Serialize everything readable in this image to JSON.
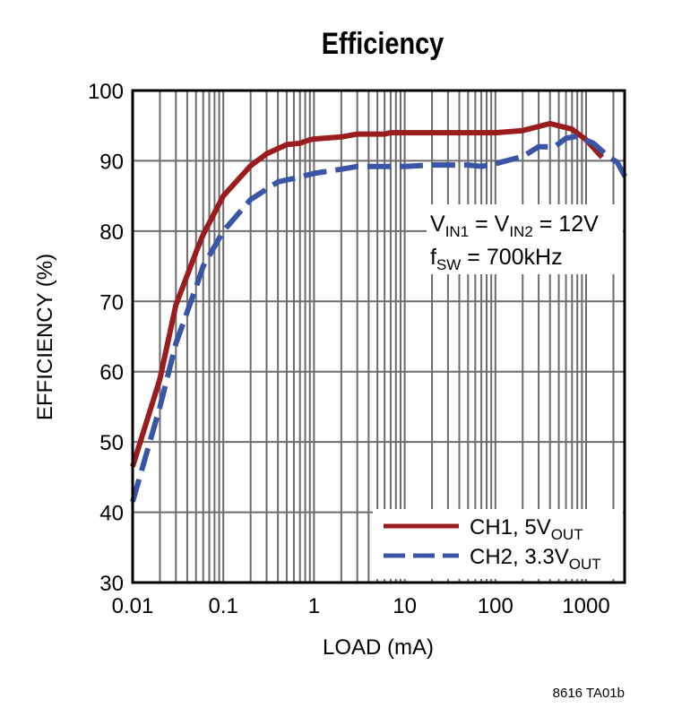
{
  "chart_data": {
    "type": "line",
    "title": "Efficiency",
    "xlabel": "LOAD (mA)",
    "ylabel": "EFFICIENCY (%)",
    "xscale": "log",
    "xlim": [
      0.01,
      2700
    ],
    "ylim": [
      30,
      100
    ],
    "xticks": [
      0.01,
      0.1,
      1,
      10,
      100,
      1000
    ],
    "xtick_labels": [
      "0.01",
      "0.1",
      "1",
      "10",
      "100",
      "1000"
    ],
    "yticks": [
      30,
      40,
      50,
      60,
      70,
      80,
      90,
      100
    ],
    "ytick_labels": [
      "30",
      "40",
      "50",
      "60",
      "70",
      "80",
      "90",
      "100"
    ],
    "grid": true,
    "legend_position": "bottom-right",
    "annotation": {
      "line1": [
        "V",
        "IN1",
        " = V",
        "IN2",
        " = 12V"
      ],
      "line2": [
        "f",
        "SW",
        " = 700kHz"
      ]
    },
    "series": [
      {
        "name": "CH1, 5V",
        "name_sub": "OUT",
        "color": "#9b1c1f",
        "style": "solid",
        "x": [
          0.01,
          0.02,
          0.03,
          0.05,
          0.06,
          0.1,
          0.2,
          0.3,
          0.5,
          0.7,
          0.9,
          1,
          2,
          3,
          6,
          7,
          10,
          100,
          200,
          400,
          700,
          1000,
          1500
        ],
        "y": [
          46.5,
          59,
          69.5,
          77,
          79.5,
          85,
          89.3,
          91,
          92.3,
          92.5,
          93,
          93.1,
          93.4,
          93.8,
          93.8,
          94,
          94,
          94,
          94.3,
          95.3,
          94.5,
          93,
          90.5
        ]
      },
      {
        "name": "CH2, 3.3V",
        "name_sub": "OUT",
        "color": "#3a55a6",
        "style": "dashed",
        "x": [
          0.01,
          0.02,
          0.03,
          0.05,
          0.06,
          0.1,
          0.2,
          0.4,
          0.6,
          1,
          2,
          3,
          10,
          20,
          50,
          70,
          100,
          200,
          300,
          450,
          600,
          800,
          1200,
          1800,
          2200,
          2700
        ],
        "y": [
          41.5,
          55,
          64,
          72,
          75,
          80,
          84.5,
          87,
          87.5,
          88.2,
          88.8,
          89.2,
          89.2,
          89.4,
          89.4,
          89.2,
          89.6,
          90.6,
          92,
          92,
          93.2,
          93.5,
          92.5,
          90.5,
          89.8,
          87.7
        ]
      }
    ]
  },
  "footer": "8616 TA01b"
}
